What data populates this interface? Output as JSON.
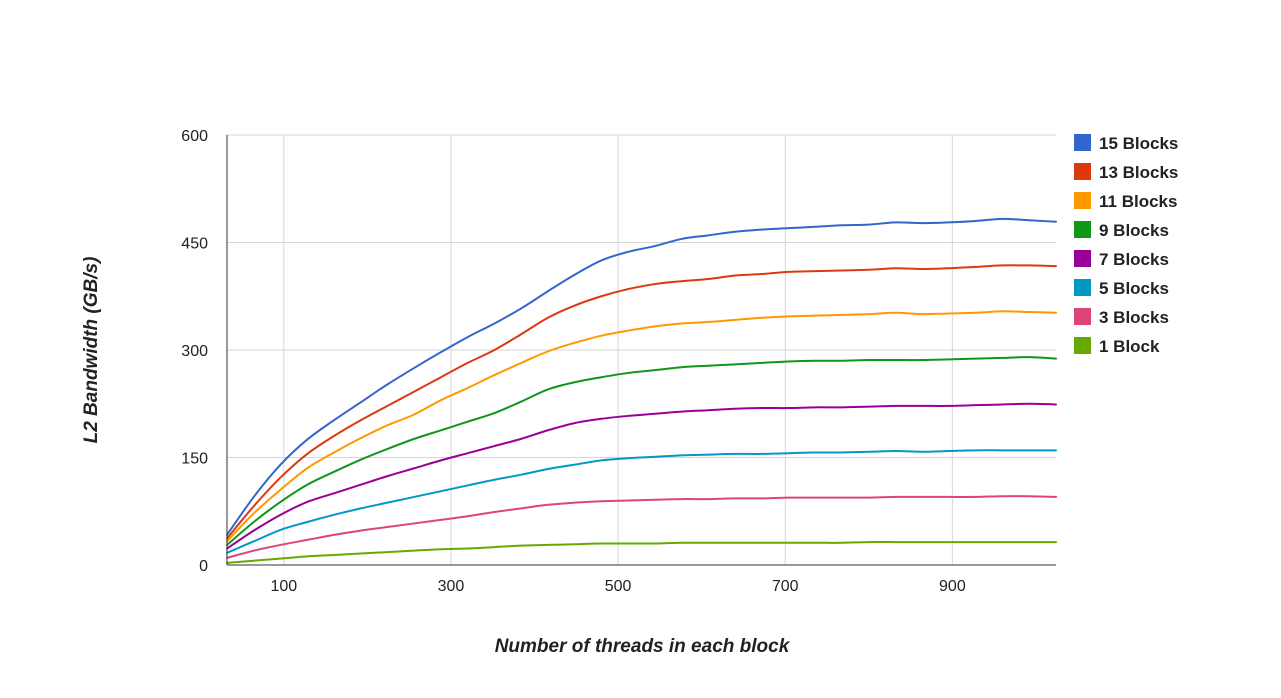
{
  "chart_data": {
    "type": "line",
    "xlabel": "Number of threads in each block",
    "ylabel": "L2 Bandwidth (GB/s)",
    "xlim": [
      32,
      1024
    ],
    "ylim": [
      0,
      600
    ],
    "x_ticks": [
      100,
      300,
      500,
      700,
      900
    ],
    "y_ticks": [
      0,
      150,
      300,
      450,
      600
    ],
    "grid": true,
    "legend_position": "right",
    "x": [
      32,
      64,
      96,
      128,
      160,
      192,
      224,
      256,
      288,
      320,
      352,
      384,
      416,
      448,
      480,
      512,
      544,
      576,
      608,
      640,
      672,
      704,
      736,
      768,
      800,
      832,
      864,
      896,
      928,
      960,
      992,
      1024
    ],
    "series": [
      {
        "name": "15 Blocks",
        "color": "#3366cc",
        "values": [
          42,
          95,
          140,
          175,
          202,
          227,
          252,
          275,
          297,
          318,
          337,
          358,
          382,
          405,
          425,
          437,
          445,
          455,
          460,
          465,
          468,
          470,
          472,
          474,
          475,
          478,
          477,
          478,
          480,
          483,
          481,
          479
        ]
      },
      {
        "name": "13 Blocks",
        "color": "#dc3912",
        "values": [
          37,
          82,
          122,
          155,
          180,
          202,
          222,
          242,
          262,
          282,
          300,
          322,
          345,
          362,
          375,
          385,
          392,
          396,
          399,
          404,
          406,
          409,
          410,
          411,
          412,
          414,
          413,
          414,
          416,
          418,
          418,
          417
        ]
      },
      {
        "name": "11 Blocks",
        "color": "#ff9900",
        "values": [
          33,
          72,
          105,
          135,
          157,
          177,
          195,
          210,
          230,
          247,
          265,
          282,
          298,
          310,
          320,
          327,
          333,
          337,
          339,
          342,
          345,
          347,
          348,
          349,
          350,
          352,
          350,
          351,
          352,
          354,
          353,
          352
        ]
      },
      {
        "name": "9 Blocks",
        "color": "#109618",
        "values": [
          28,
          60,
          88,
          112,
          130,
          147,
          162,
          176,
          188,
          200,
          212,
          228,
          245,
          255,
          262,
          268,
          272,
          276,
          278,
          280,
          282,
          284,
          285,
          285,
          286,
          286,
          286,
          287,
          288,
          289,
          290,
          288
        ]
      },
      {
        "name": "7 Blocks",
        "color": "#990099",
        "values": [
          23,
          48,
          70,
          88,
          100,
          112,
          124,
          135,
          146,
          156,
          166,
          176,
          188,
          198,
          204,
          208,
          211,
          214,
          216,
          218,
          219,
          219,
          220,
          220,
          221,
          222,
          222,
          222,
          223,
          224,
          225,
          224
        ]
      },
      {
        "name": "5 Blocks",
        "color": "#0099c6",
        "values": [
          17,
          33,
          49,
          60,
          70,
          79,
          87,
          95,
          103,
          111,
          119,
          126,
          134,
          140,
          146,
          149,
          151,
          153,
          154,
          155,
          155,
          156,
          157,
          157,
          158,
          159,
          158,
          159,
          160,
          160,
          160,
          160
        ]
      },
      {
        "name": "3 Blocks",
        "color": "#dd4477",
        "values": [
          10,
          20,
          28,
          35,
          42,
          48,
          53,
          58,
          63,
          68,
          74,
          79,
          84,
          87,
          89,
          90,
          91,
          92,
          92,
          93,
          93,
          94,
          94,
          94,
          94,
          95,
          95,
          95,
          95,
          96,
          96,
          95
        ]
      },
      {
        "name": "1 Block",
        "color": "#66aa00",
        "values": [
          3,
          6,
          9,
          12,
          14,
          16,
          18,
          20,
          22,
          23,
          25,
          27,
          28,
          29,
          30,
          30,
          30,
          31,
          31,
          31,
          31,
          31,
          31,
          31,
          32,
          32,
          32,
          32,
          32,
          32,
          32,
          32
        ]
      }
    ]
  }
}
